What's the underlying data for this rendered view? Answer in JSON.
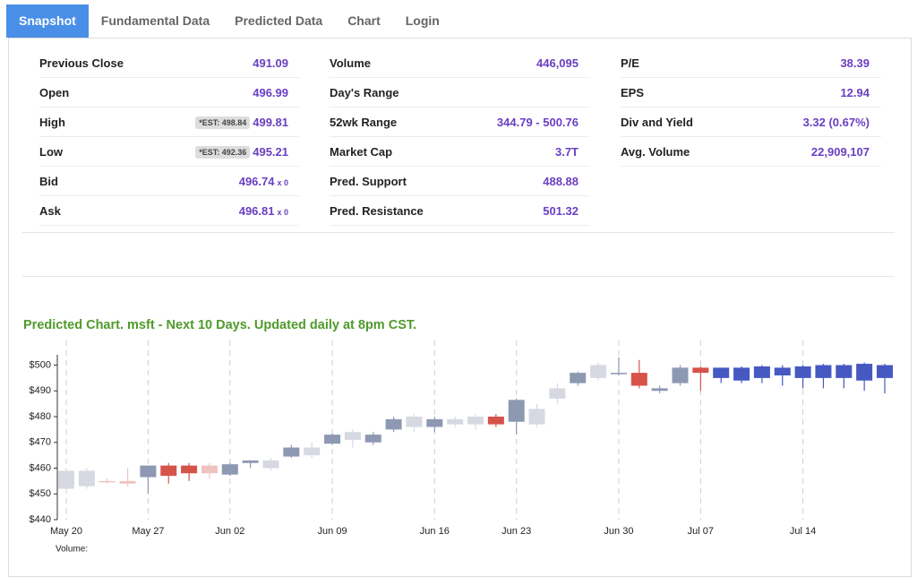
{
  "tabs": [
    "Snapshot",
    "Fundamental Data",
    "Predicted Data",
    "Chart",
    "Login"
  ],
  "stats": [
    [
      {
        "label": "Previous Close",
        "value": "491.09"
      },
      {
        "label": "Open",
        "value": "496.99"
      },
      {
        "label": "High",
        "value": "499.81",
        "badge": "*EST: 498.84"
      },
      {
        "label": "Low",
        "value": "495.21",
        "badge": "*EST: 492.36"
      },
      {
        "label": "Bid",
        "value": "496.74",
        "suffix": "x 0"
      },
      {
        "label": "Ask",
        "value": "496.81",
        "suffix": "x 0"
      }
    ],
    [
      {
        "label": "Volume",
        "value": "446,095"
      },
      {
        "label": "Day's Range"
      },
      {
        "label": "52wk Range",
        "value": "344.79 - 500.76"
      },
      {
        "label": "Market Cap",
        "value": "3.7T"
      },
      {
        "label": "Pred. Support",
        "value": "488.88"
      },
      {
        "label": "Pred. Resistance",
        "value": "501.32"
      }
    ],
    [
      {
        "label": "P/E",
        "value": "38.39"
      },
      {
        "label": "EPS",
        "value": "12.94"
      },
      {
        "label": "Div and Yield",
        "value": "3.32 (0.67%)"
      },
      {
        "label": "Avg. Volume",
        "value": "22,909,107"
      }
    ]
  ],
  "chart_data": {
    "type": "candlestick",
    "title": "Predicted Chart. msft - Next 10 Days. Updated daily at 8pm CST.",
    "footer": "Volume:",
    "ylim": [
      440,
      504
    ],
    "yticks": [
      {
        "value": 440,
        "label": "$440"
      },
      {
        "value": 450,
        "label": "$450"
      },
      {
        "value": 460,
        "label": "$460"
      },
      {
        "value": 470,
        "label": "$470"
      },
      {
        "value": 480,
        "label": "$480"
      },
      {
        "value": 490,
        "label": "$490"
      },
      {
        "value": 500,
        "label": "$500"
      }
    ],
    "categories": [
      "May 20",
      null,
      null,
      null,
      "May 27",
      null,
      null,
      null,
      "Jun 02",
      null,
      null,
      null,
      null,
      "Jun 09",
      null,
      null,
      null,
      null,
      "Jun 16",
      null,
      null,
      null,
      "Jun 23",
      null,
      null,
      null,
      null,
      "Jun 30",
      null,
      null,
      null,
      "Jul 07",
      null,
      null,
      null,
      null,
      "Jul 14",
      null,
      null,
      null,
      null
    ],
    "colors": {
      "slate": "#8d98b3",
      "light": "#d6d9e1",
      "red": "#d6534a",
      "pink": "#efc3bf",
      "blue": "#4658c2"
    },
    "candles": [
      {
        "open": 452,
        "high": 460,
        "low": 451,
        "close": 459,
        "color": "light"
      },
      {
        "open": 459,
        "high": 460,
        "low": 452,
        "close": 453,
        "color": "light"
      },
      {
        "open": 455,
        "high": 456,
        "low": 454,
        "close": 454.5,
        "color": "pink"
      },
      {
        "open": 455,
        "high": 460,
        "low": 453,
        "close": 454,
        "color": "pink"
      },
      {
        "open": 456.5,
        "high": 461,
        "low": 450,
        "close": 461,
        "color": "slate"
      },
      {
        "open": 461,
        "high": 462,
        "low": 454,
        "close": 457,
        "color": "red"
      },
      {
        "open": 461,
        "high": 462,
        "low": 455,
        "close": 458,
        "color": "red"
      },
      {
        "open": 461,
        "high": 462,
        "low": 456,
        "close": 458,
        "color": "pink"
      },
      {
        "open": 457.5,
        "high": 462,
        "low": 457,
        "close": 461.5,
        "color": "slate"
      },
      {
        "open": 462,
        "high": 463,
        "low": 460,
        "close": 463,
        "color": "slate"
      },
      {
        "open": 460,
        "high": 464,
        "low": 459,
        "close": 463,
        "color": "light"
      },
      {
        "open": 464.5,
        "high": 469,
        "low": 464,
        "close": 468,
        "color": "slate"
      },
      {
        "open": 465,
        "high": 470,
        "low": 464,
        "close": 468,
        "color": "light"
      },
      {
        "open": 469.5,
        "high": 473.5,
        "low": 469,
        "close": 473,
        "color": "slate"
      },
      {
        "open": 471,
        "high": 475,
        "low": 468,
        "close": 474,
        "color": "light"
      },
      {
        "open": 470,
        "high": 474,
        "low": 469,
        "close": 473,
        "color": "slate"
      },
      {
        "open": 475,
        "high": 480,
        "low": 474,
        "close": 479,
        "color": "slate"
      },
      {
        "open": 476,
        "high": 481,
        "low": 474,
        "close": 480,
        "color": "light"
      },
      {
        "open": 476,
        "high": 480,
        "low": 474,
        "close": 479,
        "color": "slate"
      },
      {
        "open": 477,
        "high": 480,
        "low": 476,
        "close": 479,
        "color": "light"
      },
      {
        "open": 477,
        "high": 481,
        "low": 475,
        "close": 480,
        "color": "light"
      },
      {
        "open": 480,
        "high": 481,
        "low": 476,
        "close": 477,
        "color": "red"
      },
      {
        "open": 478,
        "high": 487,
        "low": 473,
        "close": 486.5,
        "color": "slate"
      },
      {
        "open": 477,
        "high": 485,
        "low": 476,
        "close": 483,
        "color": "light"
      },
      {
        "open": 487,
        "high": 493,
        "low": 485,
        "close": 491,
        "color": "light"
      },
      {
        "open": 493,
        "high": 497.5,
        "low": 492,
        "close": 497,
        "color": "slate"
      },
      {
        "open": 495,
        "high": 501,
        "low": 494,
        "close": 500,
        "color": "light"
      },
      {
        "open": 496.5,
        "high": 503,
        "low": 496,
        "close": 497,
        "color": "slate"
      },
      {
        "open": 497,
        "high": 502,
        "low": 491,
        "close": 492,
        "color": "red"
      },
      {
        "open": 490,
        "high": 492,
        "low": 489,
        "close": 491,
        "color": "slate"
      },
      {
        "open": 493,
        "high": 500,
        "low": 492,
        "close": 499,
        "color": "slate"
      },
      {
        "open": 499,
        "high": 499.5,
        "low": 490,
        "close": 497,
        "color": "red"
      },
      {
        "open": 495,
        "high": 499,
        "low": 493,
        "close": 499,
        "color": "blue"
      },
      {
        "open": 494,
        "high": 499.5,
        "low": 493,
        "close": 499,
        "color": "blue"
      },
      {
        "open": 495,
        "high": 500,
        "low": 493,
        "close": 499.5,
        "color": "blue"
      },
      {
        "open": 496,
        "high": 500,
        "low": 492,
        "close": 499,
        "color": "blue"
      },
      {
        "open": 495,
        "high": 500,
        "low": 491,
        "close": 499.5,
        "color": "blue"
      },
      {
        "open": 495,
        "high": 500.5,
        "low": 491,
        "close": 500,
        "color": "blue"
      },
      {
        "open": 495,
        "high": 500.5,
        "low": 491,
        "close": 500,
        "color": "blue"
      },
      {
        "open": 494,
        "high": 501,
        "low": 490,
        "close": 500.5,
        "color": "blue"
      },
      {
        "open": 495,
        "high": 500.5,
        "low": 489,
        "close": 500,
        "color": "blue"
      }
    ]
  }
}
